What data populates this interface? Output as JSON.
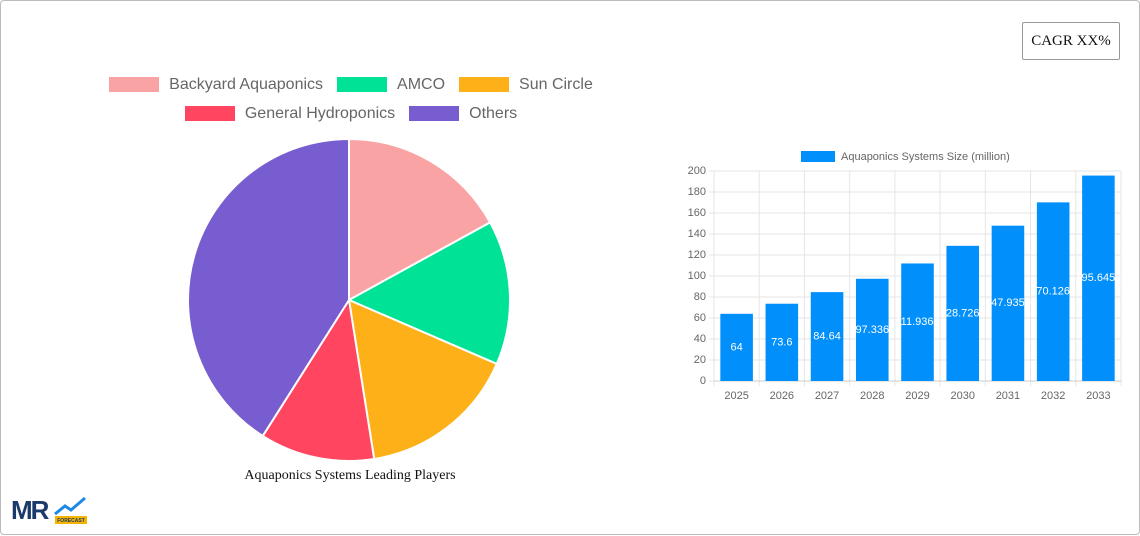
{
  "cagr_label": "CAGR XX%",
  "logo": {
    "text": "MR",
    "subtext": "FORECAST"
  },
  "chart_data": [
    {
      "type": "pie",
      "title": "Aquaponics Systems Leading Players",
      "categories": [
        "Backyard Aquaponics",
        "AMCO",
        "Sun Circle",
        "General Hydroponics",
        "Others"
      ],
      "values": [
        17,
        14.5,
        16,
        11.5,
        41
      ],
      "colors": [
        "#f9a3a4",
        "#00e396",
        "#feb019",
        "#ff4560",
        "#775dd0"
      ]
    },
    {
      "type": "bar",
      "categories": [
        "2025",
        "2026",
        "2027",
        "2028",
        "2029",
        "2030",
        "2031",
        "2032",
        "2033"
      ],
      "series": [
        {
          "name": "Aquaponics Systems Size (million)",
          "color": "#008ffb",
          "values": [
            64,
            73.6,
            84.64,
            97.336,
            111.9364,
            128.7269,
            147.9359,
            170.1262,
            195.6452
          ]
        }
      ],
      "ylim": [
        0,
        200
      ],
      "yticks": [
        0,
        20,
        40,
        60,
        80,
        100,
        120,
        140,
        160,
        180,
        200
      ],
      "grid": true
    }
  ]
}
